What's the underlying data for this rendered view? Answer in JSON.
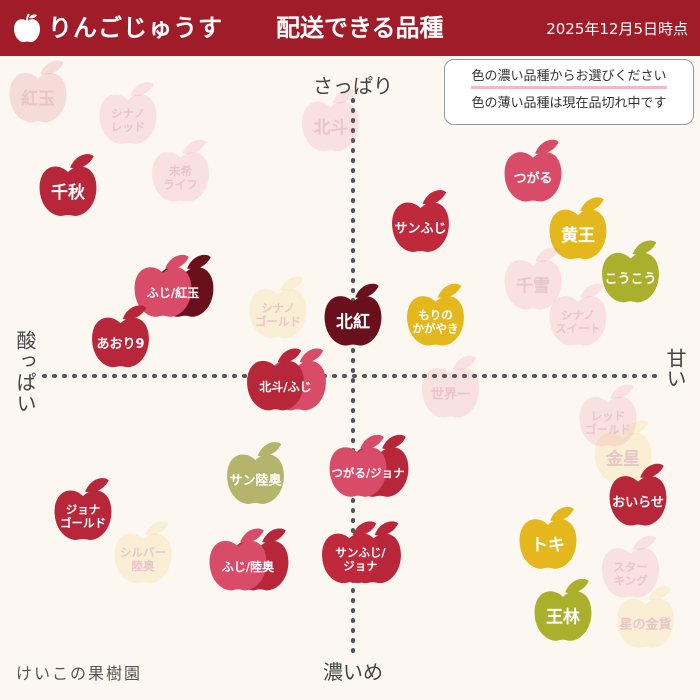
{
  "header": {
    "brand": "りんごじゅうす",
    "title": "配送できる品種",
    "date": "2025年12月5日時点"
  },
  "axes": {
    "top": "さっぱり",
    "bottom": "濃いめ",
    "left": "酸っぱい",
    "right": "甘い"
  },
  "legend_note": {
    "line1": "色の濃い品種からお選びください",
    "line2": "色の薄い品種は現在品切れ中です"
  },
  "credit": "けいこの果樹園",
  "colors": {
    "header": "#a01c28",
    "red": "#c0283c",
    "pink": "#d84c6a",
    "darkred": "#6a0f1c",
    "crimson": "#b8263a",
    "yellow": "#e4b81c",
    "green": "#aab02c",
    "olive": "#b4b46c"
  },
  "apples": [
    {
      "label": [
        "紅玉"
      ],
      "available": false,
      "color": "red",
      "flavor_x": -4.2,
      "flavor_y": 3.9
    },
    {
      "label": [
        "シナノ",
        "レッド"
      ],
      "available": false,
      "color": "pink",
      "flavor_x": -3.0,
      "flavor_y": 3.6
    },
    {
      "label": [
        "北斗"
      ],
      "available": false,
      "color": "pink",
      "flavor_x": -0.3,
      "flavor_y": 3.5
    },
    {
      "label": [
        "千秋"
      ],
      "available": true,
      "color": "crimson",
      "flavor_x": -3.8,
      "flavor_y": 2.6
    },
    {
      "label": [
        "未希",
        "ライフ"
      ],
      "available": false,
      "color": "pink",
      "flavor_x": -2.3,
      "flavor_y": 2.8
    },
    {
      "label": [
        "サンふじ"
      ],
      "available": true,
      "color": "red",
      "flavor_x": 0.9,
      "flavor_y": 2.1
    },
    {
      "label": [
        "つがる"
      ],
      "available": true,
      "color": "pink",
      "flavor_x": 2.4,
      "flavor_y": 2.8
    },
    {
      "label": [
        "黄王"
      ],
      "available": true,
      "color": "yellow",
      "flavor_x": 3.0,
      "flavor_y": 2.0
    },
    {
      "label": [
        "こうこう"
      ],
      "available": true,
      "color": "green",
      "flavor_x": 3.7,
      "flavor_y": 1.4
    },
    {
      "label": [
        "千雪"
      ],
      "available": false,
      "color": "pink",
      "flavor_x": 2.4,
      "flavor_y": 1.3
    },
    {
      "label": [
        "シナノ",
        "スイート"
      ],
      "available": false,
      "color": "pink",
      "flavor_x": 3.0,
      "flavor_y": 0.8
    },
    {
      "label": [
        "ふじ/紅玉"
      ],
      "available": true,
      "color": "pink",
      "color2": "darkred",
      "flavor_x": -2.4,
      "flavor_y": 1.2
    },
    {
      "label": [
        "シナノ",
        "ゴールド"
      ],
      "available": false,
      "color": "yellow",
      "flavor_x": -1.0,
      "flavor_y": 0.9
    },
    {
      "label": [
        "北紅"
      ],
      "available": true,
      "color": "darkred",
      "flavor_x": 0.0,
      "flavor_y": 0.8
    },
    {
      "label": [
        "もりの",
        "かがやき"
      ],
      "available": true,
      "color": "yellow",
      "flavor_x": 1.1,
      "flavor_y": 0.8
    },
    {
      "label": [
        "あおり9"
      ],
      "available": true,
      "color": "crimson",
      "flavor_x": -3.1,
      "flavor_y": 0.5
    },
    {
      "label": [
        "北斗/ふじ"
      ],
      "available": true,
      "color": "crimson",
      "color2": "pink",
      "flavor_x": -0.9,
      "flavor_y": -0.1
    },
    {
      "label": [
        "世界一"
      ],
      "available": false,
      "color": "pink",
      "flavor_x": 1.3,
      "flavor_y": -0.2
    },
    {
      "label": [
        "レッド",
        "ゴールド"
      ],
      "available": false,
      "color": "pink",
      "flavor_x": 3.4,
      "flavor_y": -0.6
    },
    {
      "label": [
        "金星"
      ],
      "available": false,
      "color": "yellow",
      "flavor_x": 3.6,
      "flavor_y": -1.1
    },
    {
      "label": [
        "サン陸奥"
      ],
      "available": true,
      "color": "olive",
      "flavor_x": -1.3,
      "flavor_y": -1.4
    },
    {
      "label": [
        "つがる/ジョナ"
      ],
      "available": true,
      "color": "pink",
      "color2": "crimson",
      "flavor_x": 0.2,
      "flavor_y": -1.3
    },
    {
      "label": [
        "おいらせ"
      ],
      "available": true,
      "color": "crimson",
      "flavor_x": 3.8,
      "flavor_y": -1.7
    },
    {
      "label": [
        "ジョナ",
        "ゴールド"
      ],
      "available": true,
      "color": "crimson",
      "flavor_x": -3.6,
      "flavor_y": -1.9
    },
    {
      "label": [
        "トキ"
      ],
      "available": true,
      "color": "yellow",
      "flavor_x": 2.6,
      "flavor_y": -2.3
    },
    {
      "label": [
        "シルバー",
        "陸奥"
      ],
      "available": false,
      "color": "yellow",
      "flavor_x": -2.8,
      "flavor_y": -2.5
    },
    {
      "label": [
        "ふじ/陸奥"
      ],
      "available": true,
      "color": "pink",
      "color2": "crimson",
      "flavor_x": -1.4,
      "flavor_y": -2.6
    },
    {
      "label": [
        "サンふじ/",
        "ジョナ"
      ],
      "available": true,
      "color": "red",
      "color2": "crimson",
      "flavor_x": 0.1,
      "flavor_y": -2.5
    },
    {
      "label": [
        "スター",
        "キング"
      ],
      "available": false,
      "color": "pink",
      "flavor_x": 3.7,
      "flavor_y": -2.7
    },
    {
      "label": [
        "王林"
      ],
      "available": true,
      "color": "green",
      "flavor_x": 2.8,
      "flavor_y": -3.3
    },
    {
      "label": [
        "星の金貨"
      ],
      "available": false,
      "color": "yellow",
      "flavor_x": 3.9,
      "flavor_y": -3.4
    }
  ]
}
